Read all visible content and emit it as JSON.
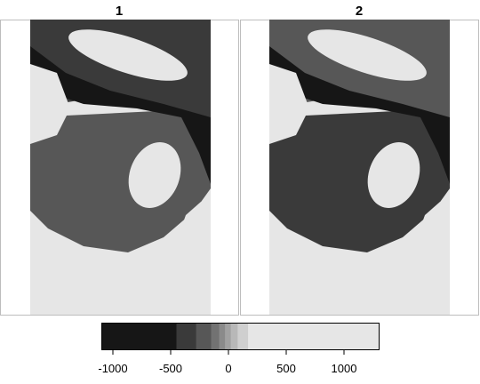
{
  "chart_data": [
    {
      "type": "heatmap",
      "panel_title": "1",
      "description_of_values": "raster grid of elevation-like values, grayscale mapped",
      "regions": [
        {
          "name": "top-left",
          "value": -400
        },
        {
          "name": "dark-band",
          "value": -1000
        },
        {
          "name": "upper-right",
          "value": 300
        },
        {
          "name": "center",
          "value": -200
        },
        {
          "name": "center-right",
          "value": 200
        },
        {
          "name": "lower",
          "value": 600
        },
        {
          "name": "bottom",
          "value": 1000
        }
      ],
      "grid": false
    },
    {
      "type": "heatmap",
      "panel_title": "2",
      "regions": [
        {
          "name": "top-left",
          "value": -200
        },
        {
          "name": "dark-band",
          "value": -1100
        },
        {
          "name": "upper-right",
          "value": 500
        },
        {
          "name": "center",
          "value": -400
        },
        {
          "name": "center-right",
          "value": 400
        },
        {
          "name": "lower",
          "value": 800
        },
        {
          "name": "bottom",
          "value": 1200
        }
      ],
      "grid": false
    }
  ],
  "legend": {
    "type": "colorbar",
    "range": [
      -1100,
      1300
    ],
    "ticks": [
      -1000,
      -500,
      0,
      500,
      1000
    ],
    "tick_labels": [
      "-1000",
      "-500",
      "0",
      "500",
      "1000"
    ],
    "bins": [
      {
        "from": -1100,
        "to": -450,
        "color": "#161616"
      },
      {
        "from": -450,
        "to": -280,
        "color": "#3a3a3a"
      },
      {
        "from": -280,
        "to": -150,
        "color": "#575757"
      },
      {
        "from": -150,
        "to": -80,
        "color": "#727272"
      },
      {
        "from": -80,
        "to": -30,
        "color": "#8a8a8a"
      },
      {
        "from": -30,
        "to": 20,
        "color": "#a1a1a1"
      },
      {
        "from": 20,
        "to": 80,
        "color": "#b8b8b8"
      },
      {
        "from": 80,
        "to": 170,
        "color": "#cfcfcf"
      },
      {
        "from": 170,
        "to": 1300,
        "color": "#e6e6e6"
      }
    ]
  }
}
